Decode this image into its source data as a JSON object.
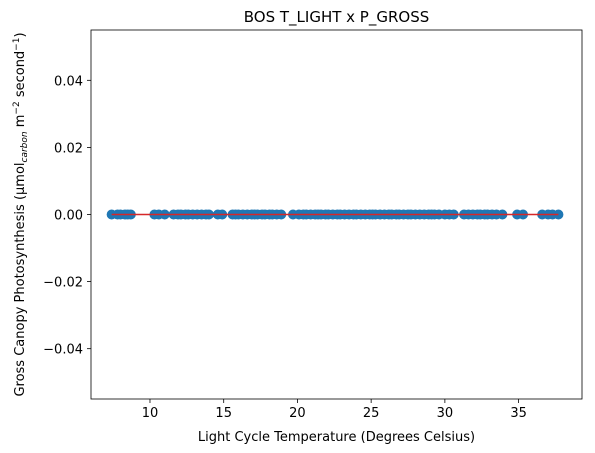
{
  "chart_data": {
    "type": "scatter",
    "title": "BOS T_LIGHT x P_GROSS",
    "xlabel": "Light Cycle Temperature (Degrees Celsius)",
    "ylabel_main": "Gross Canopy Photosynthesis (µmol",
    "ylabel_sub": "carbon",
    "ylabel_mid": " m",
    "ylabel_sup1": "−2",
    "ylabel_mid2": " second",
    "ylabel_sup2": "−1",
    "ylabel_end": ")",
    "xlim": [
      6.0,
      39.3
    ],
    "ylim": [
      -0.055,
      0.055
    ],
    "xticks": [
      10,
      15,
      20,
      25,
      30,
      35
    ],
    "xtick_labels": [
      "10",
      "15",
      "20",
      "25",
      "30",
      "35"
    ],
    "yticks": [
      0.04,
      0.02,
      0.0,
      -0.02,
      -0.04
    ],
    "ytick_labels": [
      "0.04",
      "0.02",
      "0.00",
      "−0.02",
      "−0.04"
    ],
    "grid": false,
    "colors": {
      "points": "#1f77b4",
      "fit_line": "#d62728"
    },
    "series": [
      {
        "x": [
          7.4,
          7.8,
          8.0,
          8.3,
          8.5,
          8.7,
          10.3,
          10.6,
          11.0,
          11.6,
          11.9,
          12.1,
          12.4,
          12.6,
          12.9,
          13.2,
          13.5,
          13.8,
          14.0,
          14.6,
          14.9,
          15.6,
          15.8,
          16.0,
          16.3,
          16.6,
          16.9,
          17.1,
          17.3,
          17.6,
          17.8,
          18.1,
          18.3,
          18.6,
          18.9,
          19.7,
          20.1,
          20.4,
          20.6,
          20.9,
          21.2,
          21.4,
          21.6,
          21.9,
          22.1,
          22.4,
          22.7,
          22.9,
          23.2,
          23.5,
          23.8,
          24.0,
          24.3,
          24.6,
          24.9,
          25.1,
          25.3,
          25.6,
          25.9,
          26.2,
          26.4,
          26.7,
          26.9,
          27.2,
          27.5,
          27.7,
          28.0,
          28.3,
          28.6,
          28.9,
          29.1,
          29.3,
          29.6,
          30.0,
          30.3,
          30.6,
          31.3,
          31.6,
          31.9,
          32.2,
          32.4,
          32.7,
          32.9,
          33.2,
          33.5,
          33.9,
          34.9,
          35.3,
          36.6,
          37.0,
          37.3,
          37.7
        ],
        "y": [
          0,
          0,
          0,
          0,
          0,
          0,
          0,
          0,
          0,
          0,
          0,
          0,
          0,
          0,
          0,
          0,
          0,
          0,
          0,
          0,
          0,
          0,
          0,
          0,
          0,
          0,
          0,
          0,
          0,
          0,
          0,
          0,
          0,
          0,
          0,
          0,
          0,
          0,
          0,
          0,
          0,
          0,
          0,
          0,
          0,
          0,
          0,
          0,
          0,
          0,
          0,
          0,
          0,
          0,
          0,
          0,
          0,
          0,
          0,
          0,
          0,
          0,
          0,
          0,
          0,
          0,
          0,
          0,
          0,
          0,
          0,
          0,
          0,
          0,
          0,
          0,
          0,
          0,
          0,
          0,
          0,
          0,
          0,
          0,
          0,
          0,
          0,
          0,
          0,
          0,
          0,
          0
        ]
      }
    ],
    "fit_line": {
      "x": [
        7.4,
        37.7
      ],
      "y": [
        0.0,
        0.0
      ]
    }
  }
}
